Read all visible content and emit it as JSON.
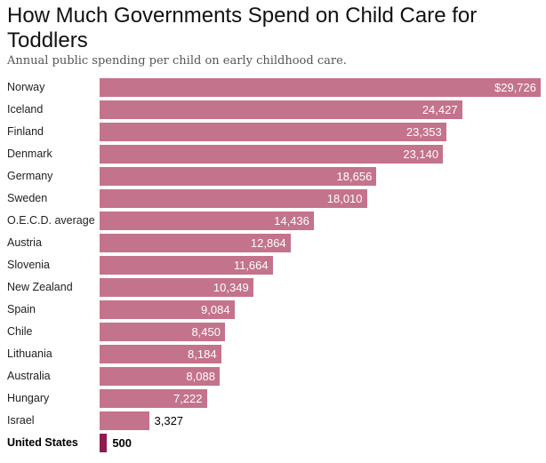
{
  "chart_data": {
    "type": "bar",
    "orientation": "horizontal",
    "title": "How Much Governments Spend on Child Care for Toddlers",
    "subtitle": "Annual public spending per child on early childhood care.",
    "categories": [
      "Norway",
      "Iceland",
      "Finland",
      "Denmark",
      "Germany",
      "Sweden",
      "O.E.C.D. average",
      "Austria",
      "Slovenia",
      "New Zealand",
      "Spain",
      "Chile",
      "Lithuania",
      "Australia",
      "Hungary",
      "Israel",
      "United States"
    ],
    "values": [
      29726,
      24427,
      23353,
      23140,
      18656,
      18010,
      14436,
      12864,
      11664,
      10349,
      9084,
      8450,
      8184,
      8088,
      7222,
      3327,
      500
    ],
    "value_labels": [
      "$29,726",
      "24,427",
      "23,353",
      "23,140",
      "18,656",
      "18,010",
      "14,436",
      "12,864",
      "11,664",
      "10,349",
      "9,084",
      "8,450",
      "8,184",
      "8,088",
      "7,222",
      "3,327",
      "500"
    ],
    "highlight": "United States",
    "colors": {
      "bar": "#c4738c",
      "highlight": "#8e1c4e"
    },
    "xlim": [
      0,
      29726
    ],
    "grid": false
  }
}
